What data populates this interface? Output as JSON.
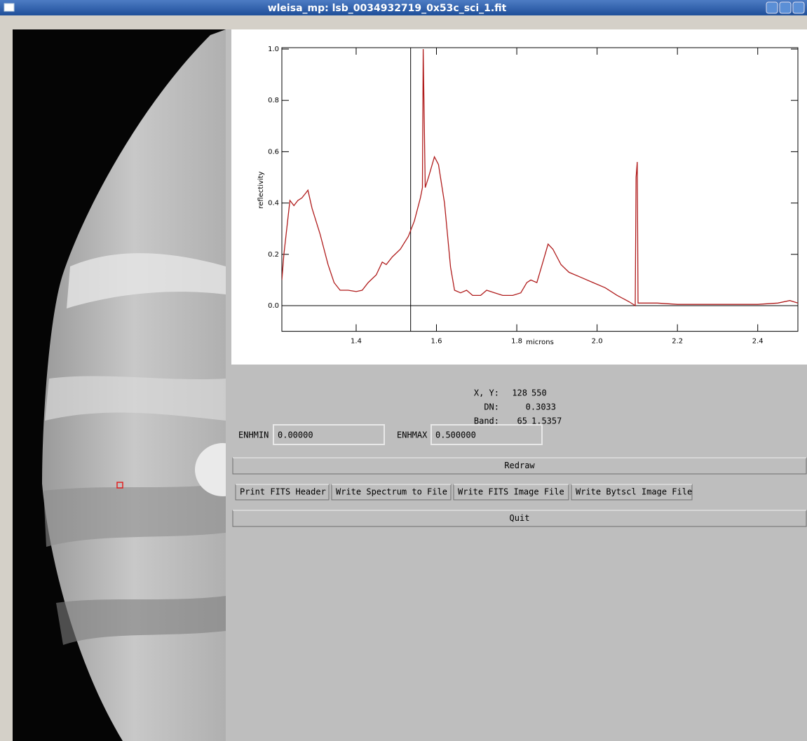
{
  "window": {
    "title": "wleisa_mp: lsb_0034932719_0x53c_sci_1.fit"
  },
  "chart_data": {
    "type": "line",
    "xlabel": "microns",
    "ylabel": "reflectivity",
    "x": [
      1.215,
      1.22,
      1.235,
      1.245,
      1.255,
      1.265,
      1.275,
      1.28,
      1.29,
      1.31,
      1.33,
      1.345,
      1.36,
      1.38,
      1.4,
      1.415,
      1.43,
      1.45,
      1.465,
      1.475,
      1.49,
      1.51,
      1.53,
      1.545,
      1.56,
      1.565,
      1.567,
      1.572,
      1.58,
      1.595,
      1.605,
      1.62,
      1.635,
      1.645,
      1.66,
      1.675,
      1.69,
      1.71,
      1.725,
      1.745,
      1.765,
      1.79,
      1.81,
      1.825,
      1.835,
      1.85,
      1.865,
      1.878,
      1.89,
      1.91,
      1.93,
      1.96,
      1.99,
      2.02,
      2.05,
      2.08,
      2.095,
      2.097,
      2.1,
      2.102,
      2.15,
      2.2,
      2.25,
      2.3,
      2.35,
      2.4,
      2.45,
      2.48,
      2.5
    ],
    "series": [
      {
        "color": "#b01c1c",
        "values": [
          0.1,
          0.2,
          0.41,
          0.39,
          0.41,
          0.42,
          0.44,
          0.45,
          0.38,
          0.28,
          0.16,
          0.09,
          0.06,
          0.06,
          0.055,
          0.06,
          0.09,
          0.12,
          0.17,
          0.16,
          0.19,
          0.22,
          0.27,
          0.33,
          0.42,
          0.46,
          1.0,
          0.46,
          0.5,
          0.58,
          0.55,
          0.4,
          0.15,
          0.06,
          0.05,
          0.06,
          0.04,
          0.04,
          0.06,
          0.05,
          0.04,
          0.04,
          0.05,
          0.09,
          0.1,
          0.09,
          0.17,
          0.24,
          0.22,
          0.16,
          0.13,
          0.11,
          0.09,
          0.07,
          0.04,
          0.015,
          0.0,
          0.5,
          0.56,
          0.01,
          0.01,
          0.005,
          0.005,
          0.005,
          0.005,
          0.005,
          0.01,
          0.02,
          0.01
        ]
      }
    ],
    "xlim": [
      1.215,
      2.5
    ],
    "ylim": [
      -0.1,
      1.0
    ],
    "xticks": [
      1.4,
      1.6,
      1.8,
      {
        "value": 2.0,
        "label": "2.0"
      },
      2.2,
      2.4
    ],
    "yticks": [
      {
        "value": 0,
        "label": "0.0"
      },
      0.2,
      0.4,
      0.6,
      0.8,
      {
        "value": 1.0,
        "label": "1.0"
      }
    ]
  },
  "info": {
    "xy_label": "X, Y:",
    "x": 128,
    "y": 550,
    "dn_label": "DN:",
    "dn": 0.3033,
    "band_label": "Band:",
    "band": 65,
    "wavelength": 1.5357
  },
  "fields": [
    {
      "label": "ENHMIN",
      "value": "0.00000"
    },
    {
      "label": "ENHMAX",
      "value": "0.500000"
    }
  ],
  "buttons": {
    "redraw": "Redraw",
    "row": [
      "Print FITS Header",
      "Write Spectrum to File",
      "Write FITS Image File",
      "Write Bytscl Image File"
    ],
    "quit": "Quit"
  }
}
